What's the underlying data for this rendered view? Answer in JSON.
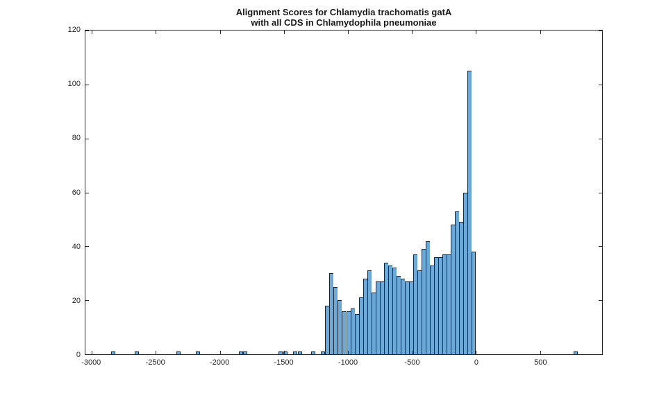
{
  "figure": {
    "title_line1": "Alignment Scores for Chlamydia trachomatis gatA",
    "title_line2": "with all CDS in Chlamydophila pneumoniae"
  },
  "chart_data": {
    "type": "bar",
    "subtype": "histogram",
    "title": "Alignment Scores for Chlamydia trachomatis gatA with all CDS in Chlamydophila pneumoniae",
    "xlabel": "",
    "ylabel": "",
    "xlim": [
      -3050,
      985
    ],
    "ylim": [
      0,
      120
    ],
    "grid": false,
    "legend": "none",
    "box": true,
    "tick_direction": "in",
    "xticks": [
      -3000,
      -2500,
      -2000,
      -1500,
      -1000,
      -500,
      0,
      500
    ],
    "xtick_labels": [
      "-3000",
      "-2500",
      "-2000",
      "-1500",
      "-1000",
      "-500",
      "0",
      "500"
    ],
    "yticks": [
      0,
      20,
      40,
      60,
      80,
      100,
      120
    ],
    "ytick_labels": [
      "0",
      "20",
      "40",
      "60",
      "80",
      "100",
      "120"
    ],
    "bin_width": 32.7,
    "main_cluster": {
      "start_edge": -1177,
      "counts": [
        18,
        30,
        25,
        20,
        16,
        16,
        17,
        15,
        21,
        28,
        31,
        23,
        27,
        27,
        34,
        33,
        32,
        29,
        28,
        27,
        27,
        37,
        31,
        39,
        42,
        33,
        36,
        36,
        37,
        37,
        48,
        53,
        49,
        60,
        105,
        38
      ]
    },
    "outlier_bars": [
      {
        "center": -2835,
        "count": 1
      },
      {
        "center": -2650,
        "count": 1
      },
      {
        "center": -2325,
        "count": 1
      },
      {
        "center": -2170,
        "count": 1
      },
      {
        "center": -1835,
        "count": 1
      },
      {
        "center": -1805,
        "count": 1
      },
      {
        "center": -1525,
        "count": 1
      },
      {
        "center": -1490,
        "count": 1
      },
      {
        "center": -1410,
        "count": 1
      },
      {
        "center": -1375,
        "count": 1
      },
      {
        "center": -1270,
        "count": 1
      },
      {
        "center": -1195,
        "count": 1
      },
      {
        "center": 778,
        "count": 1
      }
    ],
    "colors": {
      "bar_fill": "#6CA9D9",
      "bar_edge": "#1B2631",
      "axis": "#262626",
      "title_text": "#1A1A1A",
      "background": "#FFFFFF"
    }
  }
}
